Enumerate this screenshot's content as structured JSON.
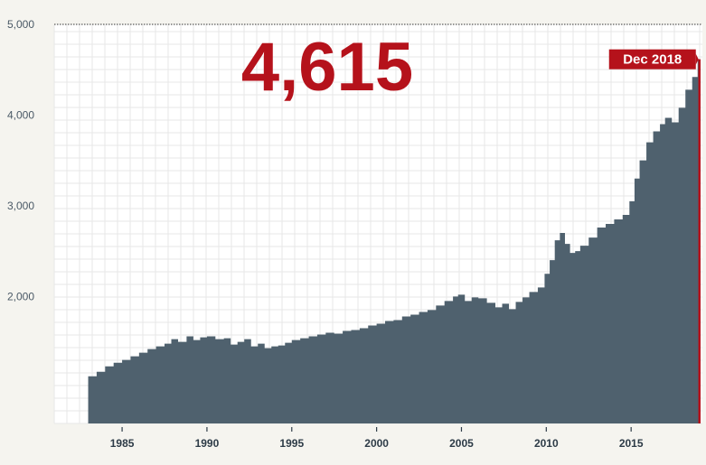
{
  "headline_value": "4,615",
  "end_tag": "Dec 2018",
  "colors": {
    "area": "#4f616e",
    "accent": "#b5121b",
    "grid": "#e7e7e7",
    "plot_bg": "#ffffff",
    "page_bg": "#f5f4ef"
  },
  "chart_data": {
    "type": "area",
    "title": "",
    "xlabel": "",
    "ylabel": "",
    "xlim": [
      1981.0,
      2019.2
    ],
    "ylim": [
      600,
      5000
    ],
    "y_ticks": [
      {
        "value": 2000,
        "label": "2,000"
      },
      {
        "value": 3000,
        "label": "3,000"
      },
      {
        "value": 4000,
        "label": "4,000"
      },
      {
        "value": 5000,
        "label": "5,000"
      }
    ],
    "x_ticks": [
      {
        "value": 1985,
        "label": "1985"
      },
      {
        "value": 1990,
        "label": "1990"
      },
      {
        "value": 1995,
        "label": "1995"
      },
      {
        "value": 2000,
        "label": "2000"
      },
      {
        "value": 2005,
        "label": "2005"
      },
      {
        "value": 2010,
        "label": "2010"
      },
      {
        "value": 2015,
        "label": "2015"
      }
    ],
    "grid": true,
    "reference_line": 5000,
    "highlight": {
      "x": 2018.92,
      "y": 4615,
      "label": "Dec 2018"
    },
    "series": [
      {
        "x": [
          1983.0,
          1983.5,
          1984.0,
          1984.5,
          1985.0,
          1985.5,
          1986.0,
          1986.5,
          1987.0,
          1987.5,
          1987.9,
          1988.3,
          1988.8,
          1989.2,
          1989.6,
          1990.0,
          1990.5,
          1991.0,
          1991.4,
          1991.8,
          1992.2,
          1992.6,
          1993.0,
          1993.4,
          1993.8,
          1994.2,
          1994.6,
          1995.0,
          1995.5,
          1996.0,
          1996.5,
          1997.0,
          1997.5,
          1998.0,
          1998.5,
          1999.0,
          1999.5,
          2000.0,
          2000.5,
          2001.0,
          2001.5,
          2002.0,
          2002.5,
          2003.0,
          2003.5,
          2004.0,
          2004.5,
          2004.8,
          2005.2,
          2005.6,
          2006.0,
          2006.5,
          2007.0,
          2007.4,
          2007.8,
          2008.2,
          2008.6,
          2009.0,
          2009.5,
          2009.9,
          2010.2,
          2010.5,
          2010.8,
          2011.1,
          2011.4,
          2011.7,
          2012.0,
          2012.5,
          2013.0,
          2013.5,
          2014.0,
          2014.5,
          2014.9,
          2015.2,
          2015.5,
          2015.9,
          2016.3,
          2016.7,
          2017.0,
          2017.4,
          2017.8,
          2018.2,
          2018.6,
          2018.92
        ],
        "values": [
          1120,
          1170,
          1230,
          1270,
          1300,
          1340,
          1380,
          1420,
          1450,
          1480,
          1530,
          1500,
          1560,
          1520,
          1550,
          1560,
          1530,
          1540,
          1470,
          1500,
          1530,
          1450,
          1480,
          1430,
          1450,
          1460,
          1490,
          1520,
          1540,
          1560,
          1580,
          1600,
          1590,
          1620,
          1630,
          1650,
          1680,
          1700,
          1730,
          1740,
          1780,
          1800,
          1830,
          1850,
          1900,
          1950,
          2000,
          2020,
          1950,
          1990,
          1980,
          1930,
          1880,
          1920,
          1860,
          1940,
          1990,
          2050,
          2100,
          2250,
          2400,
          2620,
          2700,
          2580,
          2480,
          2500,
          2560,
          2650,
          2760,
          2800,
          2850,
          2900,
          3050,
          3300,
          3500,
          3700,
          3820,
          3900,
          3970,
          3920,
          4080,
          4280,
          4420,
          4615
        ]
      }
    ]
  }
}
